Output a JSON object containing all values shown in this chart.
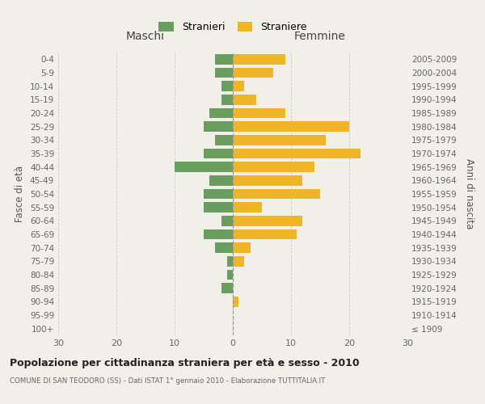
{
  "age_groups": [
    "100+",
    "95-99",
    "90-94",
    "85-89",
    "80-84",
    "75-79",
    "70-74",
    "65-69",
    "60-64",
    "55-59",
    "50-54",
    "45-49",
    "40-44",
    "35-39",
    "30-34",
    "25-29",
    "20-24",
    "15-19",
    "10-14",
    "5-9",
    "0-4"
  ],
  "birth_years": [
    "≤ 1909",
    "1910-1914",
    "1915-1919",
    "1920-1924",
    "1925-1929",
    "1930-1934",
    "1935-1939",
    "1940-1944",
    "1945-1949",
    "1950-1954",
    "1955-1959",
    "1960-1964",
    "1965-1969",
    "1970-1974",
    "1975-1979",
    "1980-1984",
    "1985-1989",
    "1990-1994",
    "1995-1999",
    "2000-2004",
    "2005-2009"
  ],
  "maschi": [
    0,
    0,
    0,
    2,
    1,
    1,
    3,
    5,
    2,
    5,
    5,
    4,
    10,
    5,
    3,
    5,
    4,
    2,
    2,
    3,
    3
  ],
  "femmine": [
    0,
    0,
    1,
    0,
    0,
    2,
    3,
    11,
    12,
    5,
    15,
    12,
    14,
    22,
    16,
    20,
    9,
    4,
    2,
    7,
    9
  ],
  "maschi_color": "#6a9e5e",
  "femmine_color": "#f0b429",
  "background_color": "#f0efe8",
  "grid_color": "#cccccc",
  "title": "Popolazione per cittadinanza straniera per età e sesso - 2010",
  "subtitle": "COMUNE DI SAN TEODORO (SS) - Dati ISTAT 1° gennaio 2010 - Elaborazione TUTTITALIA.IT",
  "header_left": "Maschi",
  "header_right": "Femmine",
  "ylabel_left": "Fasce di età",
  "ylabel_right": "Anni di nascita",
  "xlim": 30,
  "legend_stranieri": "Stranieri",
  "legend_straniere": "Straniere"
}
